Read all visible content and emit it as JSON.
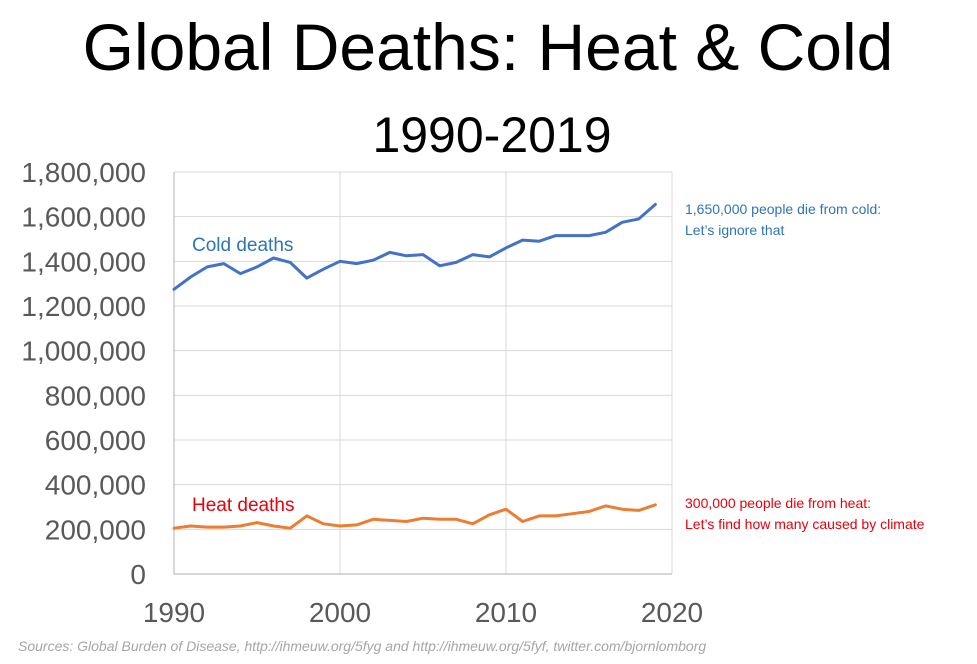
{
  "chart_data": {
    "type": "line",
    "title": "Global Deaths: Heat & Cold",
    "subtitle": "1990-2019",
    "xlabel": "",
    "ylabel": "",
    "xlim": [
      1990,
      2020
    ],
    "ylim": [
      0,
      1800000
    ],
    "x_ticks": [
      1990,
      2000,
      2010,
      2020
    ],
    "x_tick_labels": [
      "1990",
      "2000",
      "2010",
      "2020"
    ],
    "y_ticks": [
      0,
      200000,
      400000,
      600000,
      800000,
      1000000,
      1200000,
      1400000,
      1600000,
      1800000
    ],
    "y_tick_labels": [
      "0",
      "200,000",
      "400,000",
      "600,000",
      "800,000",
      "1,000,000",
      "1,200,000",
      "1,400,000",
      "1,600,000",
      "1,800,000"
    ],
    "grid": true,
    "x": [
      1990,
      1991,
      1992,
      1993,
      1994,
      1995,
      1996,
      1997,
      1998,
      1999,
      2000,
      2001,
      2002,
      2003,
      2004,
      2005,
      2006,
      2007,
      2008,
      2009,
      2010,
      2011,
      2012,
      2013,
      2014,
      2015,
      2016,
      2017,
      2018,
      2019
    ],
    "series": [
      {
        "name": "Cold deaths",
        "color": "#4472c4",
        "values": [
          1275000,
          1330000,
          1375000,
          1390000,
          1345000,
          1375000,
          1415000,
          1395000,
          1325000,
          1365000,
          1400000,
          1390000,
          1405000,
          1440000,
          1425000,
          1430000,
          1380000,
          1395000,
          1430000,
          1420000,
          1460000,
          1495000,
          1490000,
          1515000,
          1515000,
          1515000,
          1530000,
          1575000,
          1590000,
          1655000
        ]
      },
      {
        "name": "Heat deaths",
        "color": "#ed7d31",
        "values": [
          205000,
          215000,
          210000,
          210000,
          215000,
          230000,
          215000,
          205000,
          260000,
          225000,
          215000,
          220000,
          245000,
          240000,
          235000,
          250000,
          245000,
          245000,
          225000,
          265000,
          290000,
          235000,
          260000,
          260000,
          270000,
          280000,
          305000,
          290000,
          285000,
          310000
        ]
      }
    ],
    "series_labels": [
      {
        "text": "Cold deaths",
        "color": "#2e75b6"
      },
      {
        "text": "Heat deaths",
        "color": "#e8000b"
      }
    ],
    "annotations": [
      {
        "lines": [
          "1,650,000 people die from cold:",
          "Let’s ignore that"
        ],
        "color": "#2e75b6"
      },
      {
        "lines": [
          "300,000 people die from heat:",
          "Let’s find how many caused by climate"
        ],
        "color": "#e8000b"
      }
    ]
  },
  "source_note": "Sources: Global Burden of Disease, http://ihmeuw.org/5fyg and http://ihmeuw.org/5fyf, twitter.com/bjornlomborg"
}
